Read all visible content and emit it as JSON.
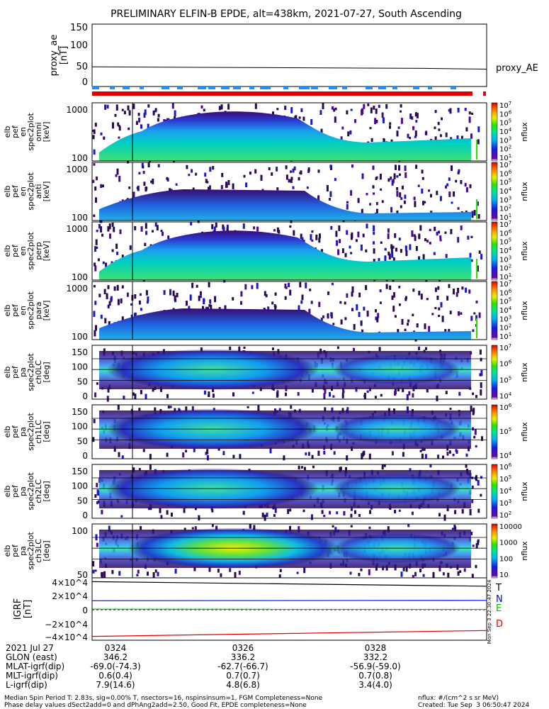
{
  "title": "PRELIMINARY ELFIN-B EPDE, alt=438km, 2021-07-27, South Ascending",
  "colors": {
    "frame": "#000000",
    "scl_red": "#e00000",
    "scl_blue": "#1e90ff",
    "T": "#000000",
    "N": "#0000ff",
    "E": "#00c000",
    "D": "#e00000"
  },
  "chart_data": [
    {
      "panel": "proxy_ae",
      "type": "line",
      "ylabel": [
        "proxy_ae",
        "[nT]"
      ],
      "yticks": [
        "150",
        "100",
        "50",
        "0"
      ],
      "ylim": [
        -10,
        155
      ],
      "series": [
        {
          "name": "proxy_AE",
          "x": [
            "03:23.0",
            "03:28.7",
            "03:29.8"
          ],
          "values": [
            42,
            38,
            36
          ]
        }
      ]
    },
    {
      "panel": "spectrogram_omni",
      "type": "heatmap",
      "ylabel": [
        "elb",
        "pef",
        "en",
        "spec2plot",
        "omni",
        "[keV]"
      ],
      "yticks": [
        "1000",
        "100"
      ],
      "colorbar": {
        "label": "nflux",
        "scale": "log",
        "ticks": [
          "10^1",
          "10^2",
          "10^3",
          "10^4",
          "10^5",
          "10^6",
          "10^7"
        ]
      }
    },
    {
      "panel": "spectrogram_anti",
      "type": "heatmap",
      "ylabel": [
        "elb",
        "pef",
        "en",
        "spec2plot",
        "anti",
        "[keV]"
      ],
      "yticks": [
        "1000",
        "100"
      ],
      "colorbar": {
        "label": "nflux",
        "scale": "log",
        "ticks": [
          "10^1",
          "10^2",
          "10^3",
          "10^4",
          "10^5",
          "10^6",
          "10^7"
        ]
      }
    },
    {
      "panel": "spectrogram_perp",
      "type": "heatmap",
      "ylabel": [
        "elb",
        "pef",
        "en",
        "spec2plot",
        "perp",
        "[keV]"
      ],
      "yticks": [
        "1000",
        "100"
      ],
      "colorbar": {
        "label": "nflux",
        "scale": "log",
        "ticks": [
          "10^1",
          "10^2",
          "10^3",
          "10^4",
          "10^5",
          "10^6",
          "10^7"
        ]
      }
    },
    {
      "panel": "spectrogram_para",
      "type": "heatmap",
      "ylabel": [
        "elb",
        "pef",
        "en",
        "spec2plot",
        "para",
        "[keV]"
      ],
      "yticks": [
        "1000",
        "100"
      ],
      "colorbar": {
        "label": "nflux",
        "scale": "log",
        "ticks": [
          "10^1",
          "10^2",
          "10^3",
          "10^4",
          "10^5",
          "10^6",
          "10^7"
        ]
      }
    },
    {
      "panel": "pitch_ch0LC",
      "type": "heatmap",
      "ylabel": [
        "elb",
        "pef",
        "pa",
        "spec2plot",
        "ch0LC",
        "[deg]"
      ],
      "yticks": [
        "150",
        "100",
        "50",
        "0"
      ],
      "colorbar": {
        "label": "nflux",
        "scale": "log",
        "ticks": [
          "10^4",
          "10^5",
          "10^6",
          "10^7"
        ]
      }
    },
    {
      "panel": "pitch_ch1LC",
      "type": "heatmap",
      "ylabel": [
        "elb",
        "pef",
        "pa",
        "spec2plot",
        "ch1LC",
        "[deg]"
      ],
      "yticks": [
        "150",
        "100",
        "50",
        "0"
      ],
      "colorbar": {
        "label": "nflux",
        "scale": "log",
        "ticks": [
          "10^4",
          "10^5",
          "10^6"
        ]
      }
    },
    {
      "panel": "pitch_ch2LC",
      "type": "heatmap",
      "ylabel": [
        "elb",
        "pef",
        "pa",
        "spec2plot",
        "ch2LC",
        "[deg]"
      ],
      "yticks": [
        "150",
        "100",
        "50",
        "0"
      ],
      "colorbar": {
        "label": "nflux",
        "scale": "log",
        "ticks": [
          "10^2",
          "10^3",
          "10^4",
          "10^5",
          "10^6"
        ]
      }
    },
    {
      "panel": "pitch_ch3LC",
      "type": "heatmap",
      "ylabel": [
        "elb",
        "pef",
        "pa",
        "spec2plot",
        "ch3LC",
        "[deg]"
      ],
      "yticks": [
        "100",
        "50"
      ],
      "colorbar": {
        "label": "nflux",
        "scale": "log",
        "ticks": [
          "10",
          "100",
          "1000",
          "10000"
        ]
      }
    },
    {
      "panel": "igrf",
      "type": "line",
      "ylabel": [
        "IGRF",
        "[nT]"
      ],
      "yticks": [
        "4×10^4",
        "2×10^4",
        "0",
        "−2×10^4",
        "−4×10^4"
      ],
      "ylim": [
        -45000,
        45000
      ],
      "series": [
        {
          "name": "T",
          "x": [
            "03:23.0",
            "03:29.8"
          ],
          "values": [
            40500,
            34000
          ]
        },
        {
          "name": "N",
          "x": [
            "03:23.0",
            "03:29.8"
          ],
          "values": [
            13000,
            13500
          ]
        },
        {
          "name": "E",
          "x": [
            "03:23.0",
            "03:29.8"
          ],
          "values": [
            800,
            600
          ]
        },
        {
          "name": "D",
          "x": [
            "03:23.0",
            "03:29.8"
          ],
          "values": [
            -38500,
            -30000
          ]
        }
      ]
    }
  ],
  "xaxis": {
    "ticks": [
      "0324",
      "0326",
      "0328"
    ]
  },
  "legend_right": {
    "proxy_ae": "proxy_AE",
    "T": "T",
    "N": "N",
    "E": "E",
    "D": "D"
  },
  "side_stamp": "Mon Sep  3 22:30:47 2024",
  "orbit": {
    "date": "2021 Jul 27",
    "rows": [
      {
        "label": "GLON (east)",
        "v1": "346.2",
        "v2": "336.2",
        "v3": "332.2"
      },
      {
        "label": "MLAT-igrf(dip)",
        "v1": "-69.0(-74.3)",
        "v2": "-62.7(-66.7)",
        "v3": "-56.9(-59.0)"
      },
      {
        "label": "MLT-igrf(dip)",
        "v1": "0.6(0.4)",
        "v2": "0.7(0.7)",
        "v3": "0.7(0.8)"
      },
      {
        "label": "L-igrf(dip)",
        "v1": "7.9(14.6)",
        "v2": "4.8(6.8)",
        "v3": "3.4(4.0)"
      }
    ]
  },
  "footer": {
    "line1": "Median Spin Period T: 2.83s, sig=0.00% T, nsectors=16, nspinsinsum=1, FGM Completeness=None",
    "line2": "Phase delay values dSect2add=0 and dPhAng2add=2.50, Good Fit, EPDE completeness=None",
    "units": "nflux: #/(cm^2 s sr MeV)",
    "created": "Created: Tue Sep  3 06:50:47 2024"
  }
}
